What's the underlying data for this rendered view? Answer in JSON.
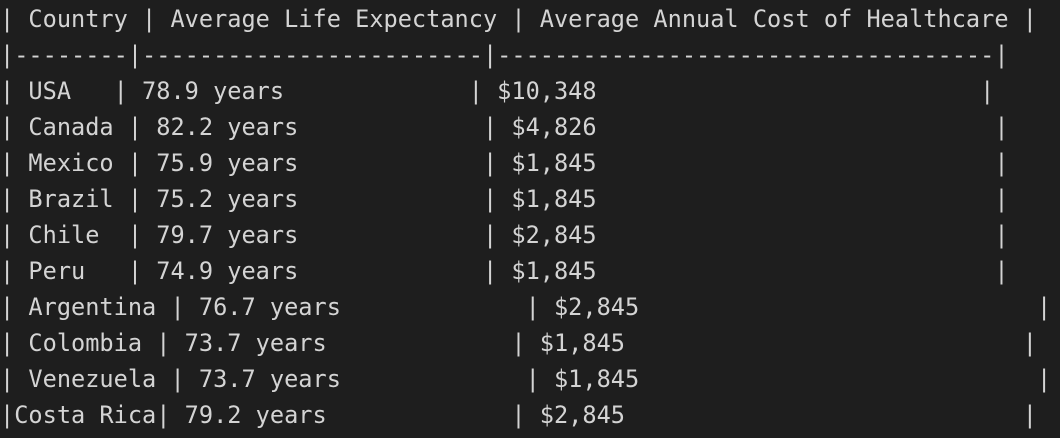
{
  "terminal": {
    "lines": [
      "| Country | Average Life Expectancy | Average Annual Cost of Healthcare |",
      "|--------|------------------------|-----------------------------------|",
      "| USA   | 78.9 years             | $10,348                           |",
      "| Canada | 82.2 years             | $4,826                            |",
      "| Mexico | 75.9 years             | $1,845                            |",
      "| Brazil | 75.2 years             | $1,845                            |",
      "| Chile  | 79.7 years             | $2,845                            |",
      "| Peru   | 74.9 years             | $1,845                            |",
      "| Argentina | 76.7 years             | $2,845                            |",
      "| Colombia | 73.7 years             | $1,845                            |",
      "| Venezuela | 73.7 years             | $1,845                            |",
      "|Costa Rica| 79.2 years             | $2,845                            |"
    ]
  }
}
